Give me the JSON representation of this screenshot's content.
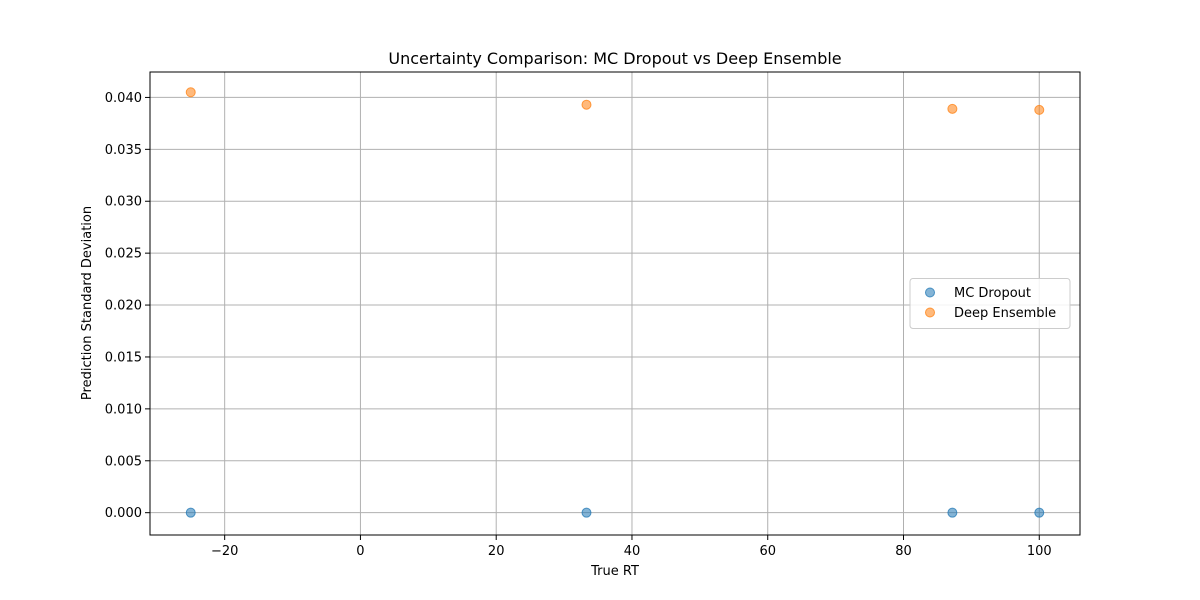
{
  "chart_data": {
    "type": "scatter",
    "title": "Uncertainty Comparison: MC Dropout vs Deep Ensemble",
    "xlabel": "True RT",
    "ylabel": "Prediction Standard Deviation",
    "xlim": [
      -31,
      106
    ],
    "ylim": [
      -0.00215,
      0.04245
    ],
    "xticks": [
      -20,
      0,
      20,
      40,
      60,
      80,
      100
    ],
    "xtick_labels": [
      "−20",
      "0",
      "20",
      "40",
      "60",
      "80",
      "100"
    ],
    "yticks": [
      0.0,
      0.005,
      0.01,
      0.015,
      0.02,
      0.025,
      0.03,
      0.035,
      0.04
    ],
    "ytick_labels": [
      "0.000",
      "0.005",
      "0.010",
      "0.015",
      "0.020",
      "0.025",
      "0.030",
      "0.035",
      "0.040"
    ],
    "grid": true,
    "legend_position": "center-right",
    "series": [
      {
        "name": "MC Dropout",
        "color": "#1f77b4",
        "x": [
          -25,
          33.3,
          87.2,
          100
        ],
        "y": [
          0.0,
          0.0,
          0.0,
          0.0
        ]
      },
      {
        "name": "Deep Ensemble",
        "color": "#ff7f0e",
        "x": [
          -25,
          33.3,
          87.2,
          100
        ],
        "y": [
          0.0405,
          0.0393,
          0.0389,
          0.0388
        ]
      }
    ]
  }
}
